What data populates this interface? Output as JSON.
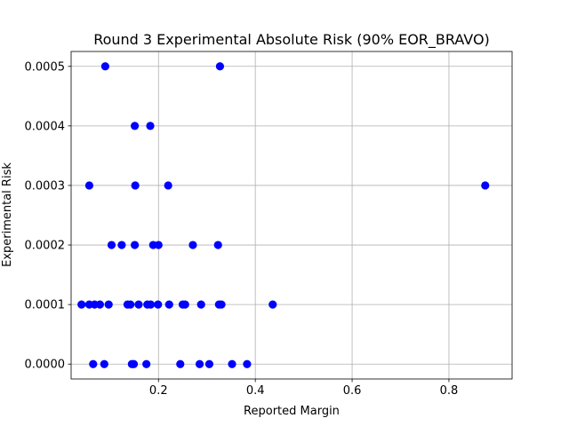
{
  "chart_data": {
    "type": "scatter",
    "title": "Round 3 Experimental Absolute Risk (90% EOR_BRAVO)",
    "xlabel": "Reported Margin",
    "ylabel": "Experimental Risk",
    "xlim": [
      0.0195,
      0.9305
    ],
    "ylim": [
      -2.5e-05,
      0.000525
    ],
    "xticks": [
      0.2,
      0.4,
      0.6,
      0.8
    ],
    "xtick_labels": [
      "0.2",
      "0.4",
      "0.6",
      "0.8"
    ],
    "yticks": [
      0.0,
      0.0001,
      0.0002,
      0.0003,
      0.0004,
      0.0005
    ],
    "ytick_labels": [
      "0.0000",
      "0.0001",
      "0.0002",
      "0.0003",
      "0.0004",
      "0.0005"
    ],
    "grid": true,
    "marker_color": "#0000ff",
    "series": [
      {
        "name": "risk",
        "points": [
          {
            "x": 0.09,
            "y": 0.0005
          },
          {
            "x": 0.327,
            "y": 0.0005
          },
          {
            "x": 0.151,
            "y": 0.0004
          },
          {
            "x": 0.183,
            "y": 0.0004
          },
          {
            "x": 0.057,
            "y": 0.0003
          },
          {
            "x": 0.152,
            "y": 0.0003
          },
          {
            "x": 0.22,
            "y": 0.0003
          },
          {
            "x": 0.875,
            "y": 0.0003
          },
          {
            "x": 0.103,
            "y": 0.0002
          },
          {
            "x": 0.124,
            "y": 0.0002
          },
          {
            "x": 0.151,
            "y": 0.0002
          },
          {
            "x": 0.189,
            "y": 0.0002
          },
          {
            "x": 0.2,
            "y": 0.0002
          },
          {
            "x": 0.271,
            "y": 0.0002
          },
          {
            "x": 0.323,
            "y": 0.0002
          },
          {
            "x": 0.041,
            "y": 0.0001
          },
          {
            "x": 0.057,
            "y": 0.0001
          },
          {
            "x": 0.068,
            "y": 0.0001
          },
          {
            "x": 0.079,
            "y": 0.0001
          },
          {
            "x": 0.097,
            "y": 0.0001
          },
          {
            "x": 0.136,
            "y": 0.0001
          },
          {
            "x": 0.142,
            "y": 0.0001
          },
          {
            "x": 0.159,
            "y": 0.0001
          },
          {
            "x": 0.177,
            "y": 0.0001
          },
          {
            "x": 0.184,
            "y": 0.0001
          },
          {
            "x": 0.199,
            "y": 0.0001
          },
          {
            "x": 0.222,
            "y": 0.0001
          },
          {
            "x": 0.25,
            "y": 0.0001
          },
          {
            "x": 0.255,
            "y": 0.0001
          },
          {
            "x": 0.288,
            "y": 0.0001
          },
          {
            "x": 0.325,
            "y": 0.0001
          },
          {
            "x": 0.33,
            "y": 0.0001
          },
          {
            "x": 0.436,
            "y": 0.0001
          },
          {
            "x": 0.065,
            "y": 0.0
          },
          {
            "x": 0.088,
            "y": 0.0
          },
          {
            "x": 0.145,
            "y": 0.0
          },
          {
            "x": 0.149,
            "y": 0.0
          },
          {
            "x": 0.175,
            "y": 0.0
          },
          {
            "x": 0.245,
            "y": 0.0
          },
          {
            "x": 0.285,
            "y": 0.0
          },
          {
            "x": 0.305,
            "y": 0.0
          },
          {
            "x": 0.352,
            "y": 0.0
          },
          {
            "x": 0.383,
            "y": 0.0
          }
        ]
      }
    ]
  }
}
